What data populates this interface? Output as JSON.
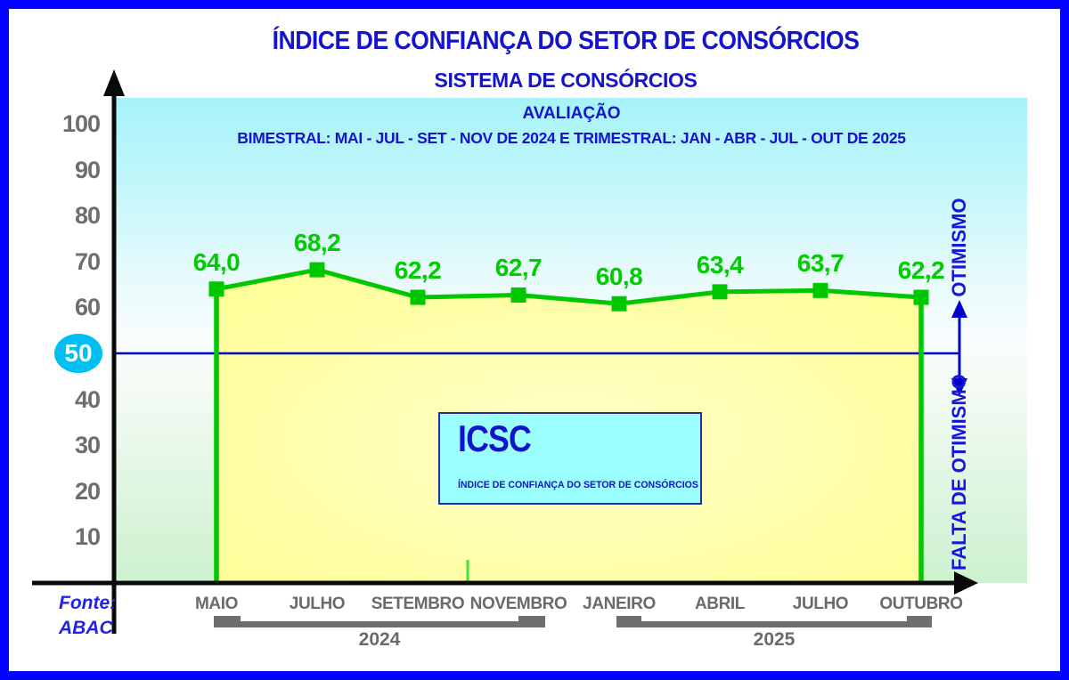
{
  "header": {
    "title": "ÍNDICE DE CONFIANÇA DO SETOR DE CONSÓRCIOS",
    "subtitle": "SISTEMA DE CONSÓRCIOS",
    "evaluation_title": "AVALIAÇÃO",
    "evaluation_detail": "BIMESTRAL: MAI - JUL - SET - NOV DE 2024 E TRIMESTRAL: JAN - ABR - JUL - OUT DE 2025"
  },
  "chart_data": {
    "type": "line",
    "title": "ÍNDICE DE CONFIANÇA DO SETOR DE CONSÓRCIOS",
    "categories": [
      "MAIO",
      "JULHO",
      "SETEMBRO",
      "NOVEMBRO",
      "JANEIRO",
      "ABRIL",
      "JULHO",
      "OUTUBRO"
    ],
    "series": [
      {
        "name": "ICSC",
        "values": [
          64.0,
          68.2,
          62.2,
          62.7,
          60.8,
          63.4,
          63.7,
          62.2
        ],
        "labels": [
          "64,0",
          "68,2",
          "62,2",
          "62,7",
          "60,8",
          "63,4",
          "63,7",
          "62,2"
        ],
        "color": "#00C800"
      }
    ],
    "xlabel": "",
    "ylabel": "",
    "ylim": [
      0,
      105
    ],
    "yticks": [
      100,
      90,
      80,
      70,
      60,
      50,
      40,
      30,
      20,
      10
    ],
    "grid": false,
    "legend_position": "none",
    "reference_line": {
      "value": 50,
      "label": "50",
      "color": "#0000BB",
      "badge_color": "#00BEF2"
    },
    "annotations": {
      "above_reference": "OTIMISMO",
      "below_reference": "FALTA DE OTIMISMO"
    },
    "year_groups": [
      {
        "label": "2024",
        "from_index": 0,
        "to_index": 3
      },
      {
        "label": "2025",
        "from_index": 4,
        "to_index": 7
      }
    ]
  },
  "legend_box": {
    "acronym": "ICSC",
    "full_name": "ÍNDICE DE CONFIANÇA DO SETOR DE CONSÓRCIOS"
  },
  "source": {
    "label": "Fonte:",
    "name": "ABAC"
  },
  "colors": {
    "frame_border": "#0202FE",
    "series_green": "#00C800",
    "area_fill_yellow": "#FFFF9E",
    "title_blue": "#1414CC",
    "axis_gray": "#6E6E6E",
    "reference_blue": "#0000BB",
    "badge_cyan": "#00BEF2",
    "legend_box_bg": "#9CFFFF"
  }
}
